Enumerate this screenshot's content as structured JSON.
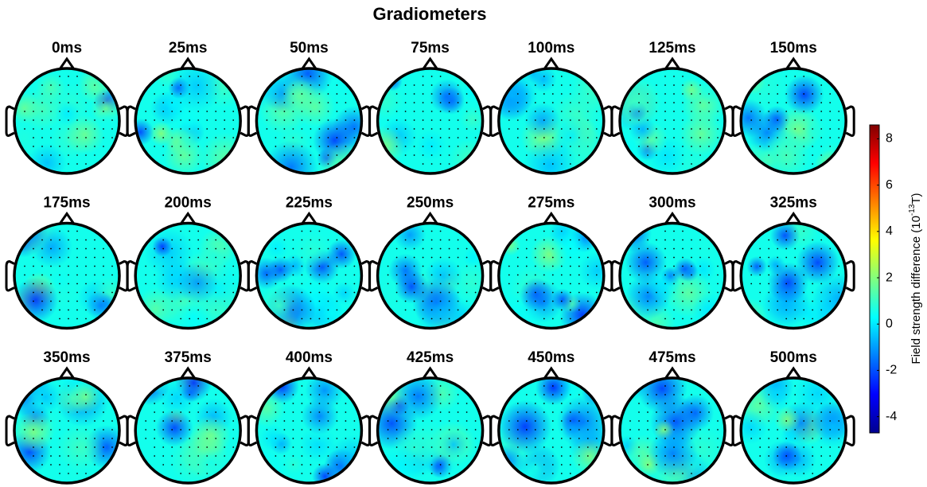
{
  "chart_data": {
    "type": "topomap",
    "title": "Gradiometers",
    "panels": [
      "0ms",
      "25ms",
      "50ms",
      "75ms",
      "100ms",
      "125ms",
      "150ms",
      "175ms",
      "200ms",
      "225ms",
      "250ms",
      "275ms",
      "300ms",
      "325ms",
      "350ms",
      "375ms",
      "400ms",
      "425ms",
      "450ms",
      "475ms",
      "500ms"
    ],
    "colorbar": {
      "label": "Field strength difference (10",
      "label_exponent": "-13",
      "label_unit": "T)",
      "lim": [
        -4.7,
        8.6
      ],
      "ticks": [
        -4,
        -2,
        0,
        2,
        4,
        6,
        8
      ],
      "colormap": "jet"
    }
  }
}
